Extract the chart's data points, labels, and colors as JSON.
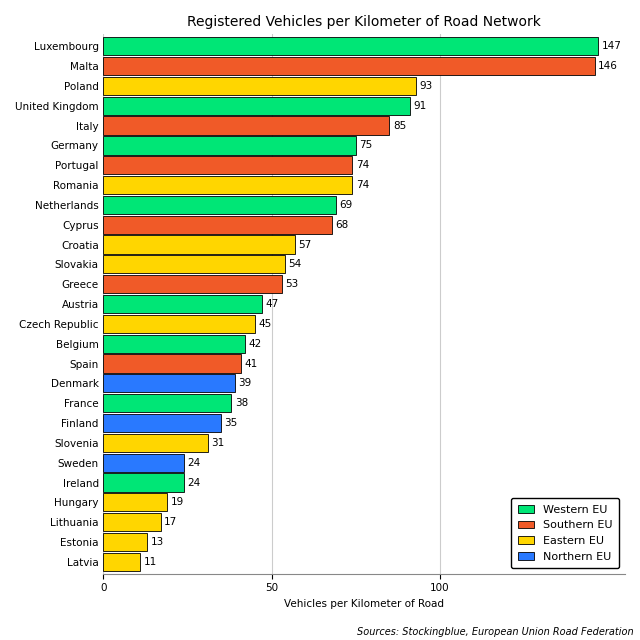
{
  "title": "Registered Vehicles per Kilometer of Road Network",
  "xlabel": "Vehicles per Kilometer of Road",
  "source": "Sources: Stockingblue, European Union Road Federation",
  "countries": [
    "Luxembourg",
    "Malta",
    "Poland",
    "United Kingdom",
    "Italy",
    "Germany",
    "Portugal",
    "Romania",
    "Netherlands",
    "Cyprus",
    "Croatia",
    "Slovakia",
    "Greece",
    "Austria",
    "Czech Republic",
    "Belgium",
    "Spain",
    "Denmark",
    "France",
    "Finland",
    "Slovenia",
    "Sweden",
    "Ireland",
    "Hungary",
    "Lithuania",
    "Estonia",
    "Latvia"
  ],
  "values": [
    147,
    146,
    93,
    91,
    85,
    75,
    74,
    74,
    69,
    68,
    57,
    54,
    53,
    47,
    45,
    42,
    41,
    39,
    38,
    35,
    31,
    24,
    24,
    19,
    17,
    13,
    11
  ],
  "regions": [
    "Western EU",
    "Southern EU",
    "Eastern EU",
    "Western EU",
    "Southern EU",
    "Western EU",
    "Southern EU",
    "Eastern EU",
    "Western EU",
    "Southern EU",
    "Eastern EU",
    "Eastern EU",
    "Southern EU",
    "Western EU",
    "Eastern EU",
    "Western EU",
    "Southern EU",
    "Northern EU",
    "Western EU",
    "Northern EU",
    "Eastern EU",
    "Northern EU",
    "Western EU",
    "Eastern EU",
    "Eastern EU",
    "Eastern EU",
    "Eastern EU"
  ],
  "colors": {
    "Western EU": "#00e676",
    "Southern EU": "#f05a28",
    "Eastern EU": "#ffd600",
    "Northern EU": "#2979ff"
  },
  "legend_order": [
    "Western EU",
    "Southern EU",
    "Eastern EU",
    "Northern EU"
  ],
  "bar_edge_color": "#000000",
  "background_color": "#ffffff",
  "grid_color": "#cccccc",
  "xlim": [
    0,
    155
  ],
  "bar_height": 0.92,
  "label_fontsize": 7.5,
  "title_fontsize": 10,
  "tick_fontsize": 7.5,
  "source_fontsize": 7
}
